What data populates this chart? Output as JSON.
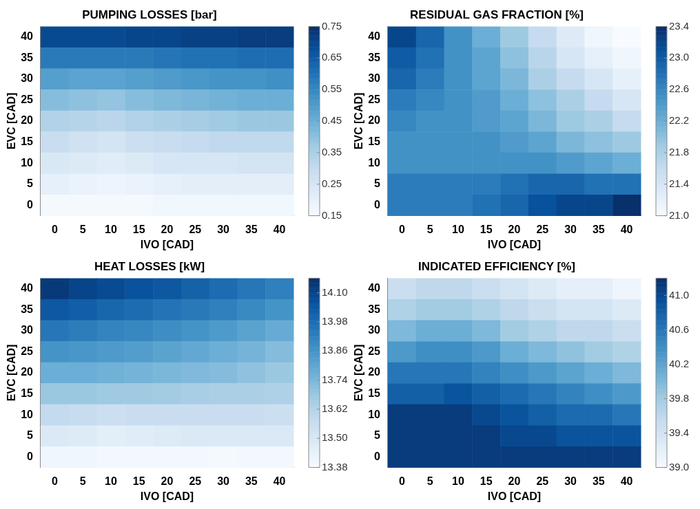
{
  "chart_data": [
    {
      "type": "heatmap",
      "title": "PUMPING LOSSES [bar]",
      "xlabel": "IVO [CAD]",
      "ylabel": "EVC [CAD]",
      "categories": [
        "0",
        "5",
        "10",
        "15",
        "20",
        "25",
        "30",
        "35",
        "40"
      ],
      "y_categories": [
        "40",
        "35",
        "30",
        "25",
        "20",
        "15",
        "10",
        "5",
        "0"
      ],
      "cells": [
        [
          0.69,
          0.69,
          0.69,
          0.7,
          0.7,
          0.71,
          0.71,
          0.72,
          0.72
        ],
        [
          0.58,
          0.58,
          0.58,
          0.58,
          0.59,
          0.6,
          0.6,
          0.61,
          0.61
        ],
        [
          0.49,
          0.48,
          0.48,
          0.49,
          0.5,
          0.51,
          0.52,
          0.52,
          0.53
        ],
        [
          0.41,
          0.4,
          0.39,
          0.41,
          0.42,
          0.43,
          0.44,
          0.45,
          0.45
        ],
        [
          0.34,
          0.33,
          0.32,
          0.34,
          0.35,
          0.36,
          0.37,
          0.38,
          0.38
        ],
        [
          0.29,
          0.27,
          0.26,
          0.28,
          0.29,
          0.3,
          0.31,
          0.31,
          0.31
        ],
        [
          0.24,
          0.23,
          0.22,
          0.23,
          0.25,
          0.25,
          0.25,
          0.26,
          0.26
        ],
        [
          0.2,
          0.19,
          0.18,
          0.19,
          0.2,
          0.21,
          0.21,
          0.21,
          0.21
        ],
        [
          0.16,
          0.16,
          0.16,
          0.16,
          0.17,
          0.17,
          0.17,
          0.17,
          0.17
        ]
      ],
      "clim": [
        0.15,
        0.75
      ],
      "cticks": [
        0.15,
        0.25,
        0.35,
        0.45,
        0.55,
        0.65,
        0.75
      ]
    },
    {
      "type": "heatmap",
      "title": "RESIDUAL GAS FRACTION [%]",
      "xlabel": "IVO [CAD]",
      "ylabel": "EVC [CAD]",
      "categories": [
        "0",
        "5",
        "10",
        "15",
        "20",
        "25",
        "30",
        "35",
        "40"
      ],
      "y_categories": [
        "40",
        "35",
        "30",
        "25",
        "20",
        "15",
        "10",
        "5",
        "0"
      ],
      "cells": [
        [
          23.2,
          22.9,
          22.5,
          22.2,
          21.9,
          21.6,
          21.3,
          21.1,
          21.0
        ],
        [
          23.0,
          22.8,
          22.5,
          22.3,
          22.0,
          21.7,
          21.4,
          21.2,
          21.1
        ],
        [
          22.9,
          22.7,
          22.5,
          22.3,
          22.1,
          21.8,
          21.6,
          21.4,
          21.2
        ],
        [
          22.7,
          22.6,
          22.5,
          22.4,
          22.2,
          22.0,
          21.8,
          21.6,
          21.4
        ],
        [
          22.6,
          22.5,
          22.5,
          22.4,
          22.3,
          22.1,
          21.9,
          21.8,
          21.6
        ],
        [
          22.5,
          22.5,
          22.5,
          22.5,
          22.4,
          22.3,
          22.1,
          22.0,
          21.9
        ],
        [
          22.5,
          22.5,
          22.5,
          22.5,
          22.5,
          22.5,
          22.4,
          22.3,
          22.2
        ],
        [
          22.7,
          22.7,
          22.7,
          22.7,
          22.8,
          22.9,
          22.9,
          22.8,
          22.8
        ],
        [
          22.7,
          22.7,
          22.7,
          22.8,
          22.9,
          23.1,
          23.2,
          23.2,
          23.4
        ]
      ],
      "clim": [
        21.0,
        23.4
      ],
      "cticks": [
        {
          "value": 21,
          "label": "21.0"
        },
        21.4,
        21.8,
        22.2,
        22.6,
        {
          "value": 23,
          "label": "23.0"
        },
        23.4
      ]
    },
    {
      "type": "heatmap",
      "title": "HEAT LOSSES [kW]",
      "xlabel": "IVO [CAD]",
      "ylabel": "EVC [CAD]",
      "categories": [
        "0",
        "5",
        "10",
        "15",
        "20",
        "25",
        "30",
        "35",
        "40"
      ],
      "y_categories": [
        "40",
        "35",
        "30",
        "25",
        "20",
        "15",
        "10",
        "5",
        "0"
      ],
      "cells": [
        [
          14.13,
          14.1,
          14.08,
          14.06,
          14.04,
          14.01,
          13.98,
          13.95,
          13.92
        ],
        [
          14.04,
          14.02,
          14.0,
          13.98,
          13.96,
          13.94,
          13.92,
          13.89,
          13.86
        ],
        [
          13.95,
          13.93,
          13.91,
          13.9,
          13.88,
          13.86,
          13.84,
          13.81,
          13.78
        ],
        [
          13.86,
          13.85,
          13.84,
          13.83,
          13.81,
          13.79,
          13.77,
          13.75,
          13.72
        ],
        [
          13.77,
          13.77,
          13.76,
          13.75,
          13.74,
          13.73,
          13.72,
          13.7,
          13.68
        ],
        [
          13.68,
          13.68,
          13.67,
          13.67,
          13.66,
          13.65,
          13.64,
          13.64,
          13.63
        ],
        [
          13.58,
          13.57,
          13.55,
          13.56,
          13.56,
          13.56,
          13.56,
          13.56,
          13.55
        ],
        [
          13.49,
          13.48,
          13.46,
          13.47,
          13.48,
          13.49,
          13.49,
          13.49,
          13.49
        ],
        [
          13.41,
          13.41,
          13.4,
          13.4,
          13.4,
          13.4,
          13.39,
          13.4,
          13.4
        ]
      ],
      "clim": [
        13.38,
        14.16
      ],
      "cticks": [
        13.38,
        {
          "value": 13.5,
          "label": "13.50"
        },
        13.62,
        13.74,
        13.86,
        13.98,
        {
          "value": 14.1,
          "label": "14.10"
        }
      ]
    },
    {
      "type": "heatmap",
      "title": "INDICATED EFFICIENCY [%]",
      "xlabel": "IVO [CAD]",
      "ylabel": "EVC [CAD]",
      "categories": [
        "0",
        "5",
        "10",
        "15",
        "20",
        "25",
        "30",
        "35",
        "40"
      ],
      "y_categories": [
        "40",
        "35",
        "30",
        "25",
        "20",
        "15",
        "10",
        "5",
        "0"
      ],
      "cells": [
        [
          39.5,
          39.6,
          39.6,
          39.5,
          39.4,
          39.3,
          39.2,
          39.2,
          39.1
        ],
        [
          39.7,
          39.8,
          39.8,
          39.7,
          39.6,
          39.5,
          39.4,
          39.4,
          39.3
        ],
        [
          40.0,
          40.1,
          40.1,
          40.0,
          39.8,
          39.7,
          39.6,
          39.6,
          39.5
        ],
        [
          40.3,
          40.4,
          40.4,
          40.3,
          40.1,
          40.0,
          39.9,
          39.8,
          39.7
        ],
        [
          40.6,
          40.6,
          40.6,
          40.5,
          40.4,
          40.3,
          40.2,
          40.1,
          40.0
        ],
        [
          40.8,
          40.8,
          40.9,
          40.8,
          40.7,
          40.6,
          40.5,
          40.4,
          40.3
        ],
        [
          41.1,
          41.1,
          41.1,
          41.0,
          40.9,
          40.8,
          40.7,
          40.7,
          40.6
        ],
        [
          41.1,
          41.1,
          41.1,
          41.1,
          41.0,
          41.0,
          40.9,
          40.9,
          40.9
        ],
        [
          41.1,
          41.1,
          41.1,
          41.1,
          41.1,
          41.1,
          41.1,
          41.1,
          41.1
        ]
      ],
      "clim": [
        39.0,
        41.2
      ],
      "cticks": [
        {
          "value": 39,
          "label": "39.0"
        },
        39.4,
        39.8,
        40.2,
        40.6,
        {
          "value": 41,
          "label": "41.0"
        }
      ]
    }
  ]
}
